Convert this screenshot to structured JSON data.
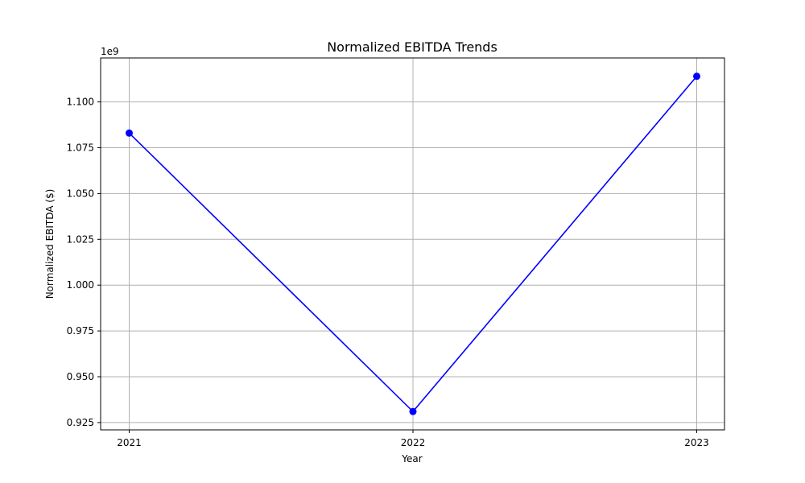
{
  "chart_data": {
    "type": "line",
    "title": "Normalized EBITDA Trends",
    "xlabel": "Year",
    "ylabel": "Normalized EBITDA ($)",
    "offset_label": "1e9",
    "categories": [
      "2021",
      "2022",
      "2023"
    ],
    "series": [
      {
        "values": [
          1.083,
          0.931,
          1.114
        ],
        "color": "#0000ff",
        "marker": "circle"
      }
    ],
    "ylim": [
      0.921,
      1.124
    ],
    "yticks": [
      0.925,
      0.95,
      0.975,
      1.0,
      1.025,
      1.05,
      1.075,
      1.1
    ],
    "ytick_labels": [
      "0.925",
      "0.950",
      "0.975",
      "1.000",
      "1.025",
      "1.050",
      "1.075",
      "1.100"
    ],
    "grid": true,
    "legend": false
  }
}
